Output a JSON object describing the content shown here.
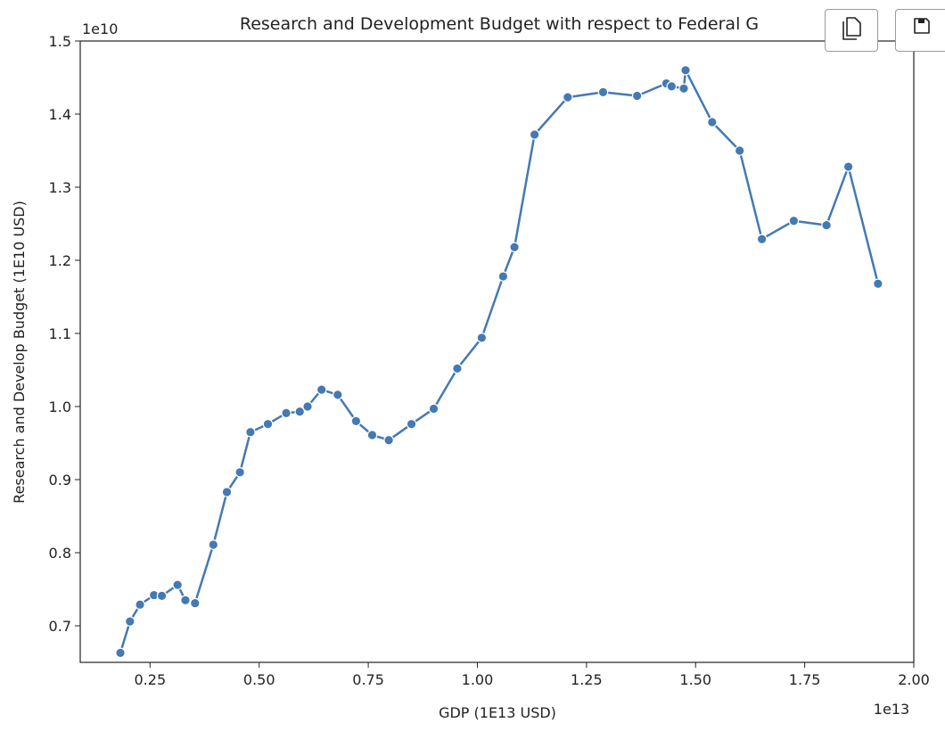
{
  "chart_data": {
    "type": "line",
    "title": "Research and Development Budget with respect to Federal G",
    "xlabel": "GDP (1E13 USD)",
    "ylabel": "Research and Develop Budget (1E10 USD)",
    "x_offset_label": "1e13",
    "y_offset_label": "1e10",
    "xlim": [
      0.09,
      2.0
    ],
    "ylim": [
      0.65,
      1.5
    ],
    "x_ticks": [
      0.25,
      0.5,
      0.75,
      1.0,
      1.25,
      1.5,
      1.75,
      2.0
    ],
    "x_tick_labels": [
      "0.25",
      "0.50",
      "0.75",
      "1.00",
      "1.25",
      "1.50",
      "1.75",
      "2.00"
    ],
    "y_ticks": [
      0.7,
      0.8,
      0.9,
      1.0,
      1.1,
      1.2,
      1.3,
      1.4,
      1.5
    ],
    "y_tick_labels": [
      "0.7",
      "0.8",
      "0.9",
      "1.0",
      "1.1",
      "1.2",
      "1.3",
      "1.4",
      "1.5"
    ],
    "grid": false,
    "legend": "none",
    "series": [
      {
        "color": "#4479b3",
        "x": [
          0.182,
          0.204,
          0.227,
          0.259,
          0.277,
          0.313,
          0.331,
          0.353,
          0.395,
          0.426,
          0.456,
          0.48,
          0.52,
          0.562,
          0.593,
          0.611,
          0.643,
          0.68,
          0.722,
          0.759,
          0.797,
          0.849,
          0.9,
          0.954,
          1.01,
          1.059,
          1.085,
          1.131,
          1.207,
          1.288,
          1.366,
          1.433,
          1.445,
          1.473,
          1.477,
          1.538,
          1.601,
          1.652,
          1.725,
          1.8,
          1.85,
          1.918
        ],
        "y": [
          0.663,
          0.706,
          0.729,
          0.742,
          0.741,
          0.756,
          0.735,
          0.731,
          0.811,
          0.883,
          0.91,
          0.965,
          0.976,
          0.991,
          0.993,
          1.0,
          1.023,
          1.016,
          0.98,
          0.961,
          0.954,
          0.976,
          0.997,
          1.052,
          1.094,
          1.178,
          1.218,
          1.372,
          1.423,
          1.43,
          1.425,
          1.442,
          1.438,
          1.435,
          1.46,
          1.389,
          1.35,
          1.229,
          1.254,
          1.248,
          1.328,
          1.168
        ]
      }
    ]
  },
  "toolbar": {
    "copy_icon": "copy-icon",
    "save_icon": "save-icon"
  }
}
